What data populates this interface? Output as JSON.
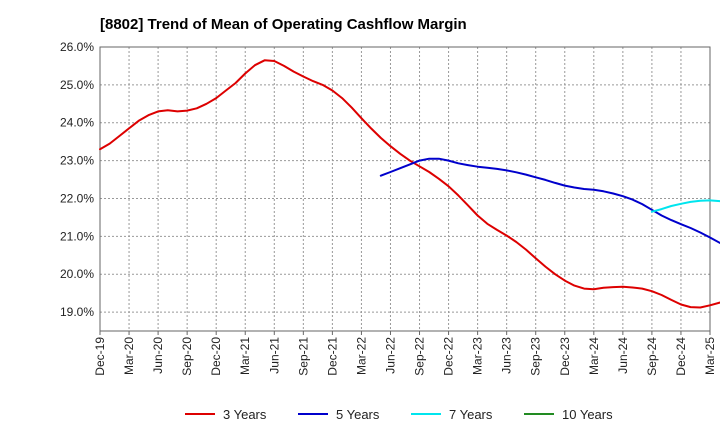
{
  "chart_data": {
    "type": "line",
    "title": "[8802]  Trend of Mean of Operating Cashflow Margin",
    "xlabel": "",
    "ylabel": "",
    "x_ticks": [
      "Dec-19",
      "Mar-20",
      "Jun-20",
      "Sep-20",
      "Dec-20",
      "Mar-21",
      "Jun-21",
      "Sep-21",
      "Dec-21",
      "Mar-22",
      "Jun-22",
      "Sep-22",
      "Dec-22",
      "Mar-23",
      "Jun-23",
      "Sep-23",
      "Dec-23",
      "Mar-24",
      "Jun-24",
      "Sep-24",
      "Dec-24",
      "Mar-25"
    ],
    "y_ticks": [
      "19.0%",
      "20.0%",
      "21.0%",
      "22.0%",
      "23.0%",
      "24.0%",
      "25.0%",
      "26.0%"
    ],
    "ylim": [
      18.5,
      26.0
    ],
    "grid": true,
    "legend_position": "bottom",
    "series": [
      {
        "name": "3 Years",
        "color": "#dd0000",
        "values": [
          23.3,
          23.45,
          23.65,
          23.85,
          24.05,
          24.2,
          24.3,
          24.33,
          24.3,
          24.32,
          24.38,
          24.5,
          24.65,
          24.85,
          25.05,
          25.3,
          25.52,
          25.65,
          25.63,
          25.5,
          25.35,
          25.22,
          25.1,
          25.0,
          24.85,
          24.65,
          24.4,
          24.12,
          23.85,
          23.6,
          23.38,
          23.18,
          23.0,
          22.85,
          22.7,
          22.52,
          22.32,
          22.08,
          21.82,
          21.55,
          21.33,
          21.17,
          21.02,
          20.85,
          20.65,
          20.42,
          20.2,
          20.0,
          19.83,
          19.7,
          19.62,
          19.6,
          19.64,
          19.66,
          19.67,
          19.65,
          19.62,
          19.55,
          19.45,
          19.32,
          19.2,
          19.13,
          19.12,
          19.18,
          19.25,
          19.3,
          19.33,
          19.35,
          19.38,
          19.42,
          19.47,
          19.52
        ]
      },
      {
        "name": "5 Years",
        "color": "#0000cc",
        "values": [
          null,
          null,
          null,
          null,
          null,
          null,
          null,
          null,
          null,
          null,
          null,
          null,
          null,
          null,
          null,
          null,
          null,
          null,
          null,
          null,
          null,
          null,
          null,
          null,
          null,
          null,
          null,
          null,
          null,
          22.6,
          22.7,
          22.8,
          22.9,
          23.0,
          23.05,
          23.05,
          23.0,
          22.93,
          22.88,
          22.84,
          22.81,
          22.78,
          22.74,
          22.69,
          22.63,
          22.56,
          22.49,
          22.41,
          22.34,
          22.29,
          22.25,
          22.23,
          22.19,
          22.13,
          22.06,
          21.97,
          21.85,
          21.7,
          21.55,
          21.43,
          21.32,
          21.22,
          21.1,
          20.97,
          20.83,
          20.72,
          20.62,
          20.56
        ]
      },
      {
        "name": "7 Years",
        "color": "#00e5ee",
        "values": [
          null,
          null,
          null,
          null,
          null,
          null,
          null,
          null,
          null,
          null,
          null,
          null,
          null,
          null,
          null,
          null,
          null,
          null,
          null,
          null,
          null,
          null,
          null,
          null,
          null,
          null,
          null,
          null,
          null,
          null,
          null,
          null,
          null,
          null,
          null,
          null,
          null,
          null,
          null,
          null,
          null,
          null,
          null,
          null,
          null,
          null,
          null,
          null,
          null,
          null,
          null,
          null,
          null,
          null,
          null,
          null,
          null,
          21.65,
          21.72,
          21.8,
          21.86,
          21.91,
          21.94,
          21.95,
          21.93,
          21.92,
          21.92,
          21.92
        ]
      },
      {
        "name": "10 Years",
        "color": "#228b22",
        "values": []
      }
    ]
  }
}
